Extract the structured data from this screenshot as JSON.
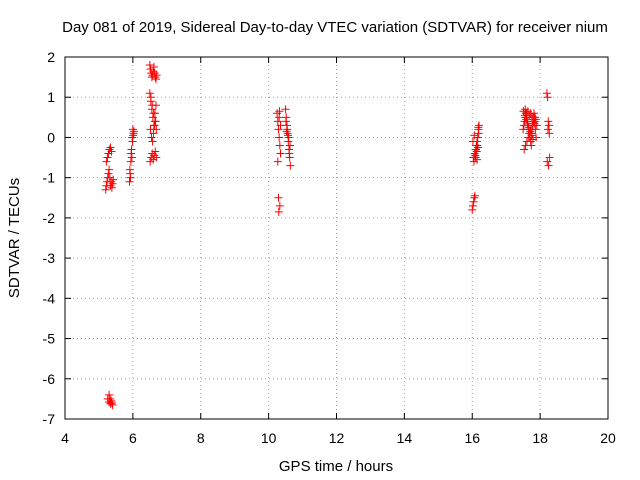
{
  "chart_data": {
    "type": "scatter",
    "title": "Day 081 of 2019, Sidereal Day-to-day VTEC variation (SDTVAR) for receiver nium",
    "xlabel": "GPS time / hours",
    "ylabel": "SDTVAR / TECUs",
    "xlim": [
      4,
      20
    ],
    "ylim": [
      -7,
      2
    ],
    "xticks": [
      "4",
      "6",
      "8",
      "10",
      "12",
      "14",
      "16",
      "18",
      "20"
    ],
    "yticks": [
      "2",
      "1",
      "0",
      "-1",
      "-2",
      "-3",
      "-4",
      "-5",
      "-6",
      "-7"
    ],
    "grid": true,
    "marker": "plus",
    "color": "#ff0000",
    "series": [
      {
        "name": "SDTVAR",
        "x": [
          5.2,
          5.22,
          5.24,
          5.26,
          5.28,
          5.3,
          5.32,
          5.34,
          5.36,
          5.38,
          5.4,
          5.42,
          5.22,
          5.25,
          5.28,
          5.31,
          5.34,
          5.37,
          5.3,
          5.33,
          5.36,
          5.38,
          5.4,
          5.26,
          5.3,
          5.34,
          5.9,
          5.92,
          5.94,
          5.96,
          5.98,
          6.0,
          6.02,
          5.91,
          5.95,
          5.99,
          6.03,
          5.93,
          5.97,
          6.01,
          6.5,
          6.52,
          6.54,
          6.56,
          6.58,
          6.6,
          6.62,
          6.64,
          6.66,
          6.68,
          6.7,
          6.5,
          6.53,
          6.56,
          6.59,
          6.62,
          6.65,
          6.68,
          6.52,
          6.55,
          6.58,
          6.61,
          6.64,
          6.67,
          6.51,
          6.54,
          6.57,
          6.6,
          6.63,
          6.66,
          6.69,
          6.53,
          6.57,
          6.61,
          6.65,
          6.69,
          10.25,
          10.27,
          10.29,
          10.31,
          10.33,
          10.35,
          10.27,
          10.31,
          10.35,
          10.29,
          10.33,
          10.3,
          10.32,
          10.5,
          10.52,
          10.54,
          10.56,
          10.58,
          10.6,
          10.62,
          10.64,
          10.51,
          10.55,
          10.59,
          10.63,
          10.53,
          10.57,
          10.61,
          16.0,
          16.02,
          16.04,
          16.06,
          16.08,
          16.1,
          16.12,
          16.14,
          16.16,
          16.18,
          16.2,
          16.03,
          16.07,
          16.11,
          16.15,
          16.19,
          16.05,
          16.09,
          16.13,
          16.17,
          16.02,
          16.06,
          16.1,
          16.14,
          16.18,
          17.5,
          17.52,
          17.54,
          17.56,
          17.58,
          17.6,
          17.62,
          17.64,
          17.66,
          17.68,
          17.7,
          17.72,
          17.74,
          17.76,
          17.78,
          17.8,
          17.82,
          17.84,
          17.86,
          17.88,
          17.9,
          17.51,
          17.55,
          17.59,
          17.63,
          17.67,
          17.71,
          17.75,
          17.79,
          17.83,
          17.87,
          17.53,
          17.57,
          17.61,
          17.65,
          17.69,
          17.73,
          17.77,
          17.81,
          17.85,
          17.56,
          17.6,
          17.64,
          17.68,
          17.72,
          17.76,
          17.8,
          18.2,
          18.22,
          18.24,
          18.26,
          18.28,
          18.21,
          18.25,
          18.23,
          18.27
        ],
        "y": [
          -1.3,
          -1.2,
          -1.1,
          -1.0,
          -0.9,
          -0.8,
          -1.0,
          -1.2,
          -1.1,
          -1.25,
          -1.15,
          -1.05,
          -0.6,
          -0.5,
          -0.4,
          -0.3,
          -0.25,
          -0.35,
          -6.4,
          -6.5,
          -6.55,
          -6.6,
          -6.65,
          -6.5,
          -6.58,
          -6.62,
          -1.1,
          -0.9,
          -0.6,
          -0.3,
          0.0,
          0.2,
          0.1,
          -0.8,
          -0.4,
          -0.1,
          0.15,
          -1.0,
          -0.5,
          0.05,
          1.8,
          1.7,
          1.6,
          1.5,
          1.55,
          1.65,
          1.75,
          1.6,
          1.5,
          1.45,
          1.55,
          1.1,
          0.9,
          0.7,
          0.5,
          0.3,
          0.6,
          0.8,
          0.2,
          0.0,
          -0.1,
          0.1,
          0.3,
          0.4,
          -0.6,
          -0.5,
          -0.4,
          -0.55,
          -0.45,
          -0.35,
          -0.5,
          1.0,
          0.8,
          0.6,
          0.4,
          0.2,
          0.6,
          0.4,
          0.2,
          0.0,
          -0.2,
          -0.4,
          -0.6,
          0.5,
          0.3,
          -1.5,
          -1.7,
          -1.85,
          0.65,
          0.7,
          0.5,
          0.3,
          0.1,
          -0.1,
          -0.3,
          -0.5,
          -0.7,
          0.4,
          0.2,
          0.0,
          -0.2,
          0.15,
          0.05,
          -0.4,
          -1.8,
          -1.7,
          -1.6,
          -1.5,
          -1.45,
          -0.3,
          -0.2,
          -0.1,
          0.0,
          0.2,
          0.3,
          -0.5,
          -0.4,
          -0.3,
          -0.2,
          0.1,
          -0.6,
          -0.45,
          -0.35,
          -0.25,
          -0.1,
          0.05,
          -0.5,
          -0.55,
          0.25,
          0.2,
          0.3,
          0.4,
          0.5,
          0.6,
          0.5,
          0.4,
          0.3,
          0.2,
          0.1,
          0.0,
          -0.1,
          -0.2,
          0.1,
          0.3,
          0.5,
          0.6,
          0.4,
          0.2,
          0.0,
          0.3,
          0.65,
          0.55,
          0.45,
          0.35,
          0.25,
          0.15,
          0.05,
          -0.05,
          0.35,
          0.45,
          -0.3,
          -0.2,
          -0.1,
          0.0,
          0.1,
          0.2,
          0.3,
          0.4,
          0.5,
          0.7,
          0.6,
          0.65,
          0.55,
          0.6,
          0.5,
          0.45,
          1.1,
          1.0,
          0.4,
          0.3,
          -0.5,
          -0.6,
          -0.7,
          0.2,
          0.1
        ]
      }
    ]
  }
}
